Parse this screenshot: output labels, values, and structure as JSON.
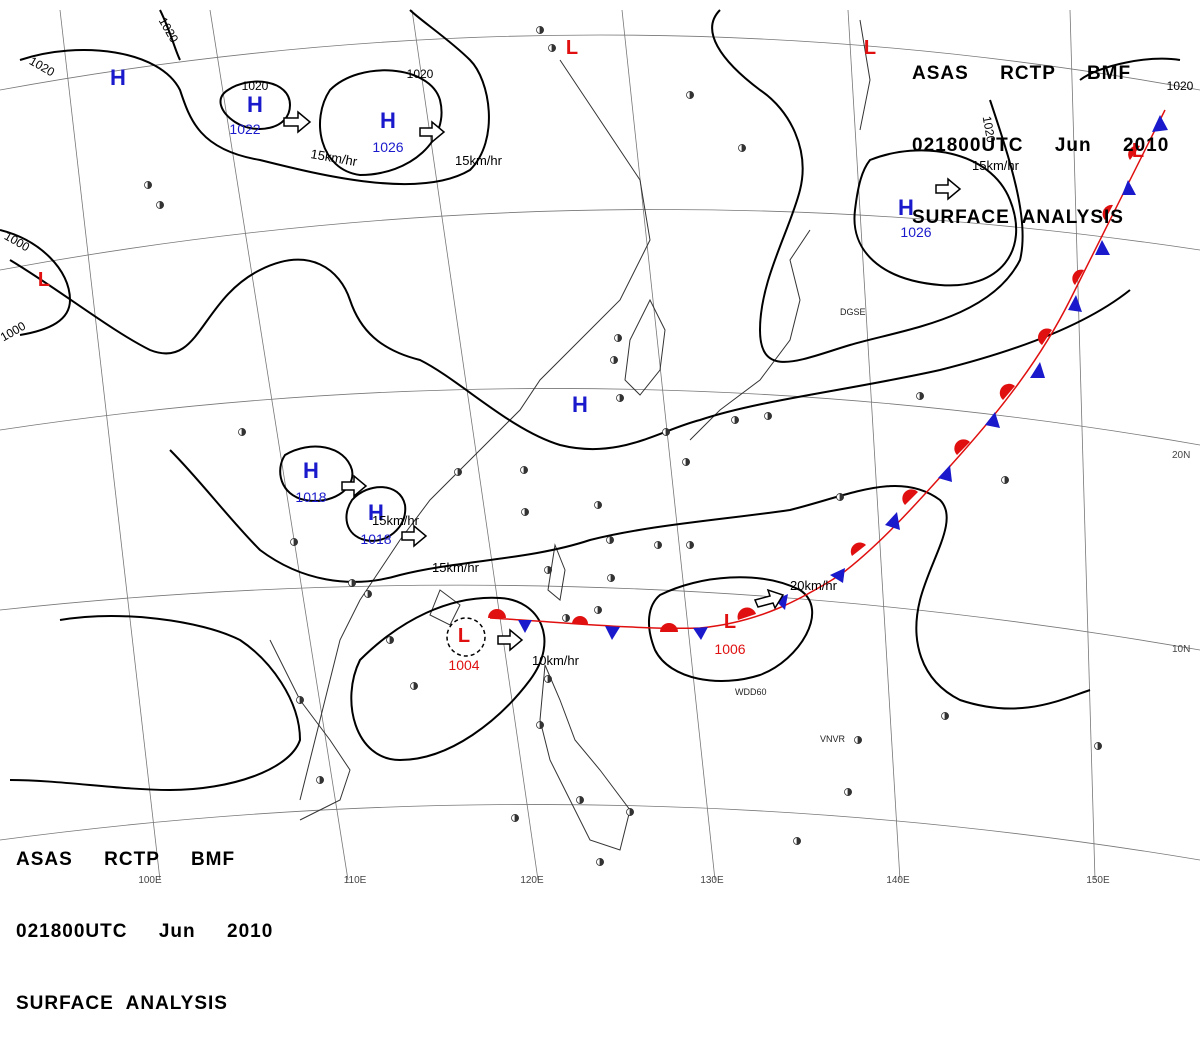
{
  "header_top_right": {
    "line1": "ASAS     RCTP     BMF",
    "line2": "021800UTC     Jun     2010",
    "line3": "SURFACE  ANALYSIS"
  },
  "header_bottom_left": {
    "line1": "ASAS     RCTP     BMF",
    "line2": "021800UTC     Jun     2010",
    "line3": "SURFACE  ANALYSIS"
  },
  "longitude_labels": [
    "100E",
    "110E",
    "120E",
    "130E",
    "140E",
    "150E"
  ],
  "latitude_labels": [
    "20N",
    "10N"
  ],
  "isobar_labels": [
    "1020",
    "1020",
    "1020",
    "1020",
    "1020",
    "1020",
    "1000",
    "1000"
  ],
  "pressure_centers": [
    {
      "type": "H",
      "value": "1022",
      "color": "#1a1acc"
    },
    {
      "type": "H",
      "value": "1026",
      "color": "#1a1acc"
    },
    {
      "type": "H",
      "value": "1026",
      "color": "#1a1acc"
    },
    {
      "type": "H",
      "value": "",
      "color": "#1a1acc"
    },
    {
      "type": "H",
      "value": "",
      "color": "#1a1acc"
    },
    {
      "type": "H",
      "value": "1018",
      "color": "#1a1acc"
    },
    {
      "type": "H",
      "value": "1018",
      "color": "#1a1acc"
    },
    {
      "type": "L",
      "value": "",
      "color": "#e01010"
    },
    {
      "type": "L",
      "value": "",
      "color": "#e01010"
    },
    {
      "type": "L",
      "value": "",
      "color": "#e01010"
    },
    {
      "type": "L",
      "value": "",
      "color": "#e01010"
    },
    {
      "type": "L",
      "value": "1004",
      "color": "#e01010"
    },
    {
      "type": "L",
      "value": "1006",
      "color": "#e01010"
    }
  ],
  "movement_labels": [
    "15km/hr",
    "15km/hr",
    "15km/hr",
    "15km/hr",
    "15km/hr",
    "10km/hr",
    "20km/hr"
  ],
  "station_labels": [
    "WDD60",
    "VNVR",
    "DGSE"
  ],
  "front": {
    "type": "stationary",
    "warm_color": "#e01010",
    "cold_color": "#1a1acc"
  },
  "colors": {
    "high": "#1a1acc",
    "low": "#e01010",
    "isobar": "#000000",
    "grid": "#777777",
    "coast": "#333333"
  }
}
